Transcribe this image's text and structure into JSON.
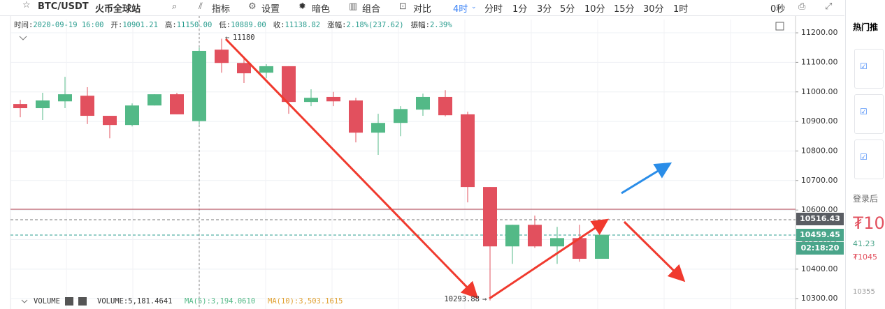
{
  "toolbar": {
    "symbol": "BTC/USDT",
    "exchange": "火币全球站",
    "buttons": [
      "指标",
      "设置",
      "暗色",
      "组合",
      "对比"
    ],
    "active_interval": "4时",
    "intervals": [
      "分时",
      "1分",
      "3分",
      "5分",
      "10分",
      "15分",
      "30分",
      "1时"
    ],
    "countdown": "0秒"
  },
  "info_bar": [
    {
      "label": "时间:",
      "value": "2020-09-19 16:00"
    },
    {
      "label": "开:",
      "value": "10901.21"
    },
    {
      "label": "高:",
      "value": "11150.00"
    },
    {
      "label": "低:",
      "value": "10889.00"
    },
    {
      "label": "收:",
      "value": "11138.82"
    },
    {
      "label": "涨幅:",
      "value": "2.18%(237.62)"
    },
    {
      "label": "振幅:",
      "value": "2.39%"
    }
  ],
  "chart_data": {
    "type": "candlestick",
    "open": [
      10959,
      10945,
      10968,
      10987,
      10919,
      10888,
      10954,
      10992,
      10901.21,
      11143,
      11098,
      11065,
      11087,
      10966,
      10983,
      10971,
      10862,
      10895,
      10940,
      10983,
      10924,
      10678,
      10477,
      10550,
      10477,
      10505,
      10435
    ],
    "high": [
      10973,
      10997,
      11051,
      11016,
      10919,
      10961,
      10992,
      10997,
      11150,
      11180,
      11117,
      11094,
      11087,
      11009,
      11000,
      10980,
      10926,
      10952,
      10994,
      11006,
      10933,
      10678,
      10550,
      10581,
      10543,
      10550,
      10516.43
    ],
    "low": [
      10914,
      10905,
      10945,
      10891,
      10843,
      10883,
      10954,
      10924,
      10889,
      11065,
      11030,
      11046,
      10926,
      10952,
      10952,
      10829,
      10787,
      10850,
      10919,
      10917,
      10626,
      10293.88,
      10418,
      10472,
      10418,
      10425,
      10435
    ],
    "close": [
      10945,
      10971,
      10992,
      10919,
      10888,
      10954,
      10992,
      10924,
      11138.82,
      11098,
      11063,
      11087,
      10966,
      10980,
      10968,
      10862,
      10895,
      10942,
      10983,
      10921,
      10678,
      10477,
      10550,
      10477,
      10505,
      10435,
      10516.43
    ],
    "up_color": "#53b987",
    "down_color": "#e2505e",
    "ylim": [
      10265,
      11245
    ],
    "yticks": [
      {
        "value": 11200,
        "label": "11200.00"
      },
      {
        "value": 11100,
        "label": "11100.00"
      },
      {
        "value": 11000,
        "label": "11000.00"
      },
      {
        "value": 10900,
        "label": "10900.00"
      },
      {
        "value": 10800,
        "label": "10800.00"
      },
      {
        "value": 10700,
        "label": "10700.00"
      },
      {
        "value": 10600,
        "label": "10600.00"
      },
      {
        "value": 10500,
        "label": "10500.00"
      },
      {
        "value": 10400,
        "label": "10400.00"
      },
      {
        "value": 10300,
        "label": "10300.00"
      }
    ],
    "grid": true,
    "annotations": [
      {
        "text": "11180"
      },
      {
        "text": "10293.88"
      }
    ],
    "price_tags": [
      "10516.43",
      "10459.45",
      "02:18:20"
    ]
  },
  "volume_bar": {
    "name": "VOLUME",
    "volume": "VOLUME:5,181.4641",
    "ma5": "MA(5):3,194.0610",
    "ma10": "MA(10):3,503.1615"
  },
  "sidebar": {
    "heading": "热门推",
    "login": "登录后",
    "price": "₮10",
    "change": "41.23",
    "sub_price": "₮1045",
    "bottom": "10355"
  }
}
